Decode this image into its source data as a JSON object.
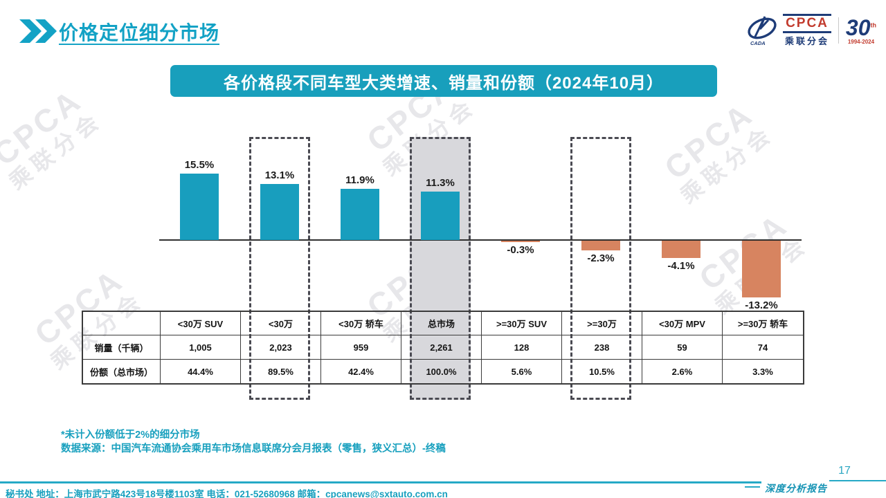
{
  "page": {
    "title": "价格定位细分市场",
    "banner": "各价格段不同车型大类增速、销量和份额（2024年10月）",
    "footnote1": "*未计入份额低于2%的细分市场",
    "footnote2": "数据来源：中国汽车流通协会乘用车市场信息联席分会月报表（零售，狭义汇总）-终稿",
    "footer": "秘书处  地址：上海市武宁路423号18号楼1103室 电话：021-52680968   邮箱：cpcanews@sxtauto.com.cn",
    "page_number": "17",
    "report_label": "深度分析报告"
  },
  "logo": {
    "cada": "CADA",
    "cpca": "CPCA",
    "sub": "乘联分会",
    "anniversary": "30",
    "anniversary_suffix": "th",
    "years": "1994-2024"
  },
  "watermark": {
    "line1": "CPCA",
    "line2": "乘联分会"
  },
  "chart_data": {
    "type": "bar",
    "title": "各价格段不同车型大类增速、销量和份额（2024年10月）",
    "categories": [
      "<30万 SUV",
      "<30万",
      "<30万 轿车",
      "总市场",
      ">=30万 SUV",
      ">=30万",
      "<30万 MPV",
      ">=30万 轿车"
    ],
    "series": [
      {
        "name": "增速",
        "unit": "%",
        "values": [
          15.5,
          13.1,
          11.9,
          11.3,
          -0.3,
          -2.3,
          -4.1,
          -13.2
        ]
      },
      {
        "name": "销量（千辆）",
        "values": [
          "1,005",
          "2,023",
          "959",
          "2,261",
          "128",
          "238",
          "59",
          "74"
        ]
      },
      {
        "name": "份额（总市场）",
        "values": [
          "44.4%",
          "89.5%",
          "42.4%",
          "100.0%",
          "5.6%",
          "10.5%",
          "2.6%",
          "3.3%"
        ]
      }
    ],
    "bar_labels": [
      "15.5%",
      "13.1%",
      "11.9%",
      "11.3%",
      "-0.3%",
      "-2.3%",
      "-4.1%",
      "-13.2%"
    ],
    "xlabel": "",
    "ylabel": "",
    "grid": false,
    "legend": false,
    "highlights": [
      {
        "category_index": 1,
        "style": "dashed"
      },
      {
        "category_index": 3,
        "style": "filled-dashed"
      },
      {
        "category_index": 5,
        "style": "dashed"
      }
    ],
    "colors": {
      "positive_bar": "#189ebe",
      "negative_bar": "#d78460",
      "highlight_fill": "#d8d8dc"
    }
  },
  "table": {
    "row_labels": [
      "销量（千辆）",
      "份额（总市场）"
    ],
    "columns": [
      "<30万 SUV",
      "<30万",
      "<30万 轿车",
      "总市场",
      ">=30万 SUV",
      ">=30万",
      "<30万 MPV",
      ">=30万 轿车"
    ],
    "sales": [
      "1,005",
      "2,023",
      "959",
      "2,261",
      "128",
      "238",
      "59",
      "74"
    ],
    "share": [
      "44.4%",
      "89.5%",
      "42.4%",
      "100.0%",
      "5.6%",
      "10.5%",
      "2.6%",
      "3.3%"
    ]
  }
}
